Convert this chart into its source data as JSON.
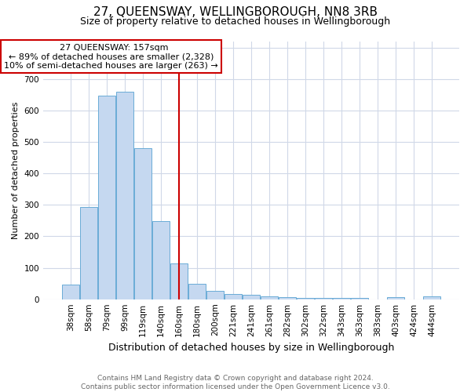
{
  "title": "27, QUEENSWAY, WELLINGBOROUGH, NN8 3RB",
  "subtitle": "Size of property relative to detached houses in Wellingborough",
  "xlabel": "Distribution of detached houses by size in Wellingborough",
  "ylabel": "Number of detached properties",
  "footnote1": "Contains HM Land Registry data © Crown copyright and database right 2024.",
  "footnote2": "Contains public sector information licensed under the Open Government Licence v3.0.",
  "annotation_line1": "27 QUEENSWAY: 157sqm",
  "annotation_line2": "← 89% of detached houses are smaller (2,328)",
  "annotation_line3": "10% of semi-detached houses are larger (263) →",
  "bar_labels": [
    "38sqm",
    "58sqm",
    "79sqm",
    "99sqm",
    "119sqm",
    "140sqm",
    "160sqm",
    "180sqm",
    "200sqm",
    "221sqm",
    "241sqm",
    "261sqm",
    "282sqm",
    "302sqm",
    "322sqm",
    "343sqm",
    "363sqm",
    "383sqm",
    "403sqm",
    "424sqm",
    "444sqm"
  ],
  "bar_values": [
    47,
    293,
    648,
    660,
    480,
    248,
    113,
    50,
    27,
    17,
    14,
    8,
    7,
    5,
    5,
    4,
    4,
    0,
    7,
    0,
    8
  ],
  "bar_color": "#c5d8f0",
  "bar_edge_color": "#6aacd6",
  "vline_x_index": 6,
  "vline_color": "#cc0000",
  "ylim": [
    0,
    820
  ],
  "annotation_box_color": "#cc0000",
  "background_color": "#ffffff",
  "grid_color": "#d0d8e8",
  "title_fontsize": 11,
  "subtitle_fontsize": 9,
  "ylabel_fontsize": 8,
  "xlabel_fontsize": 9,
  "tick_fontsize": 7.5,
  "annotation_fontsize": 8,
  "footnote_fontsize": 6.5,
  "footnote_color": "#666666"
}
